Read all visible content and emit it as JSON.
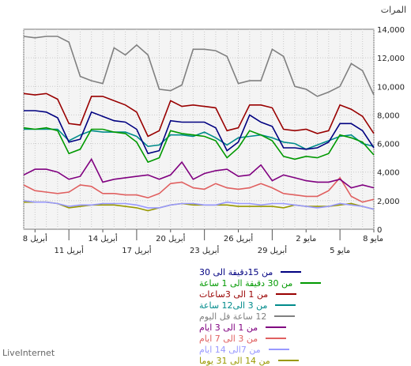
{
  "chart_data": {
    "type": "line",
    "ylabel": "المرات",
    "ylim": [
      0,
      14000
    ],
    "yticks": [
      "0",
      "2,000",
      "4,000",
      "6,000",
      "8,000",
      "10,000",
      "12,000",
      "14,000"
    ],
    "grid": true,
    "legend_position": "bottom-right",
    "x_labels_top": [
      {
        "label": "8 مايو",
        "index": 0
      },
      {
        "label": "2 مايو",
        "index": 6
      },
      {
        "label": "26 أبريل",
        "index": 12
      },
      {
        "label": "20 أبريل",
        "index": 18
      },
      {
        "label": "14 أبريل",
        "index": 24
      },
      {
        "label": "8 أبريل",
        "index": 30
      }
    ],
    "x_labels_bottom": [
      {
        "label": "5 مايو",
        "index": 3
      },
      {
        "label": "29 أبريل",
        "index": 9
      },
      {
        "label": "23 أبريل",
        "index": 15
      },
      {
        "label": "17 أبريل",
        "index": 21
      },
      {
        "label": "11 أبريل",
        "index": 27
      }
    ],
    "series": [
      {
        "name": "من 15دقيقة الى 30",
        "color": "#000080",
        "values": [
          5700,
          6900,
          7400,
          7400,
          6100,
          5700,
          5600,
          5700,
          5700,
          7200,
          7500,
          8000,
          6100,
          5500,
          7100,
          7500,
          7500,
          7500,
          7600,
          5500,
          5300,
          7000,
          7500,
          7600,
          7900,
          8200,
          6300,
          6100,
          7800,
          8200,
          8300,
          8300
        ]
      },
      {
        "name": "من 30 دقيقة الى 1 ساعة",
        "color": "#009900",
        "values": [
          5200,
          6100,
          6400,
          6600,
          5300,
          5000,
          5100,
          4900,
          5100,
          6200,
          6600,
          6900,
          5700,
          5000,
          6200,
          6500,
          6600,
          6700,
          6900,
          5000,
          4700,
          6100,
          6700,
          6800,
          7000,
          7000,
          5600,
          5300,
          6900,
          7100,
          7000,
          7100
        ]
      },
      {
        "name": "من 1 الى 3ساعات",
        "color": "#990000",
        "values": [
          6700,
          7900,
          8400,
          8700,
          6900,
          6700,
          7000,
          6900,
          7000,
          8500,
          8700,
          8700,
          7100,
          6900,
          8500,
          8600,
          8700,
          8600,
          9000,
          6900,
          6500,
          8200,
          8700,
          9000,
          9300,
          9300,
          7300,
          7400,
          9100,
          9500,
          9400,
          9500
        ]
      },
      {
        "name": "من 3 الى12 ساعة",
        "color": "#008b8b",
        "values": [
          5800,
          6000,
          6600,
          6500,
          6200,
          5900,
          5600,
          6000,
          6100,
          6400,
          6600,
          6500,
          6400,
          5900,
          6400,
          6800,
          6500,
          6600,
          6600,
          5900,
          5800,
          6500,
          6800,
          6800,
          6800,
          6900,
          6600,
          6200,
          7000,
          7000,
          7000,
          7000
        ]
      },
      {
        "name": "12 ساعة فل اليوم",
        "color": "#808080",
        "values": [
          9400,
          11100,
          11600,
          10000,
          9600,
          9300,
          9800,
          10000,
          12100,
          12600,
          10400,
          10400,
          10200,
          12100,
          12500,
          12600,
          12600,
          10100,
          9700,
          9800,
          12200,
          12900,
          12200,
          12700,
          10200,
          10400,
          10700,
          13100,
          13500,
          13500,
          13400,
          13500
        ]
      },
      {
        "name": "من 1 الى 3 ايام",
        "color": "#800080",
        "values": [
          2900,
          3100,
          2900,
          3500,
          3300,
          3300,
          3400,
          3600,
          3800,
          3400,
          4500,
          3800,
          3700,
          4200,
          4100,
          3900,
          3500,
          4700,
          3800,
          3500,
          3800,
          3700,
          3600,
          3500,
          3300,
          4900,
          3700,
          3500,
          4000,
          4200,
          4200,
          3800
        ]
      },
      {
        "name": "من 3 الى 7 ايام",
        "color": "#e06060",
        "values": [
          2100,
          1900,
          2300,
          3600,
          2700,
          2300,
          2300,
          2400,
          2500,
          2900,
          3200,
          2900,
          2800,
          2900,
          3200,
          2800,
          2900,
          3300,
          3200,
          2500,
          2200,
          2400,
          2400,
          2500,
          2500,
          3000,
          3100,
          2600,
          2500,
          2600,
          2700,
          3100
        ]
      },
      {
        "name": "من 7الى 14 ايام",
        "color": "#9999ff",
        "values": [
          1400,
          1600,
          1700,
          1800,
          1600,
          1500,
          1600,
          1700,
          1800,
          1800,
          1700,
          1800,
          1800,
          1900,
          1700,
          1700,
          1800,
          1800,
          1700,
          1500,
          1500,
          1700,
          1800,
          1800,
          1800,
          1700,
          1700,
          1600,
          1800,
          1900,
          1900,
          2000
        ]
      },
      {
        "name": "من 14 الى 31 يوما",
        "color": "#999900",
        "values": [
          1400,
          1600,
          1800,
          1700,
          1600,
          1600,
          1600,
          1700,
          1500,
          1600,
          1600,
          1600,
          1600,
          1700,
          1700,
          1700,
          1700,
          1800,
          1700,
          1500,
          1300,
          1500,
          1600,
          1700,
          1700,
          1700,
          1600,
          1500,
          1800,
          1900,
          1900,
          1900
        ]
      }
    ]
  },
  "footer": {
    "brand": "LiveInternet"
  }
}
